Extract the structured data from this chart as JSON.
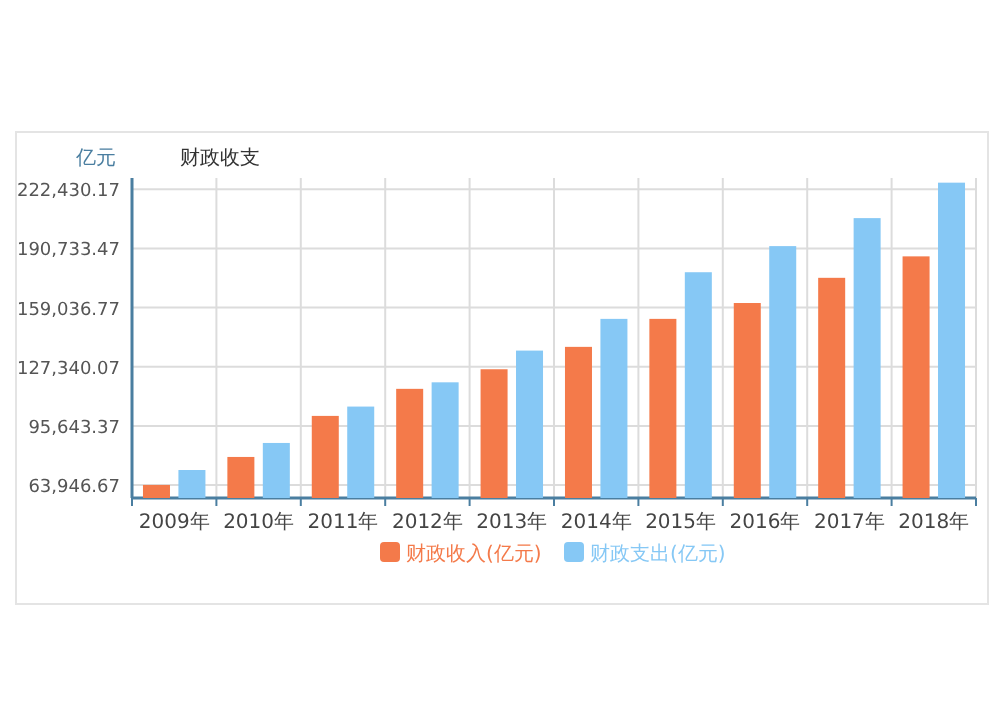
{
  "chart_data": {
    "type": "bar",
    "title": "财政收支",
    "ylabel": "亿元",
    "categories": [
      "2009年",
      "2010年",
      "2011年",
      "2012年",
      "2013年",
      "2014年",
      "2015年",
      "2016年",
      "2017年",
      "2018年"
    ],
    "series": [
      {
        "name": "财政收入(亿元)",
        "color": "#f47a4a",
        "values": [
          64000,
          79000,
          101000,
          115500,
          126000,
          138000,
          153000,
          161500,
          175000,
          186500
        ]
      },
      {
        "name": "财政支出(亿元)",
        "color": "#86c8f5",
        "values": [
          72000,
          86500,
          106000,
          119000,
          136000,
          153000,
          178000,
          192000,
          207000,
          226000
        ]
      }
    ],
    "ylim": [
      57000,
      228500
    ],
    "yticks": [
      {
        "value": 63946.67,
        "label": "63,946.67"
      },
      {
        "value": 95643.37,
        "label": "95,643.37"
      },
      {
        "value": 127340.07,
        "label": "127,340.07"
      },
      {
        "value": 159036.77,
        "label": "159,036.77"
      },
      {
        "value": 190733.47,
        "label": "190,733.47"
      },
      {
        "value": 222430.17,
        "label": "222,430.17"
      }
    ],
    "grid": true,
    "legend": "bottom"
  }
}
